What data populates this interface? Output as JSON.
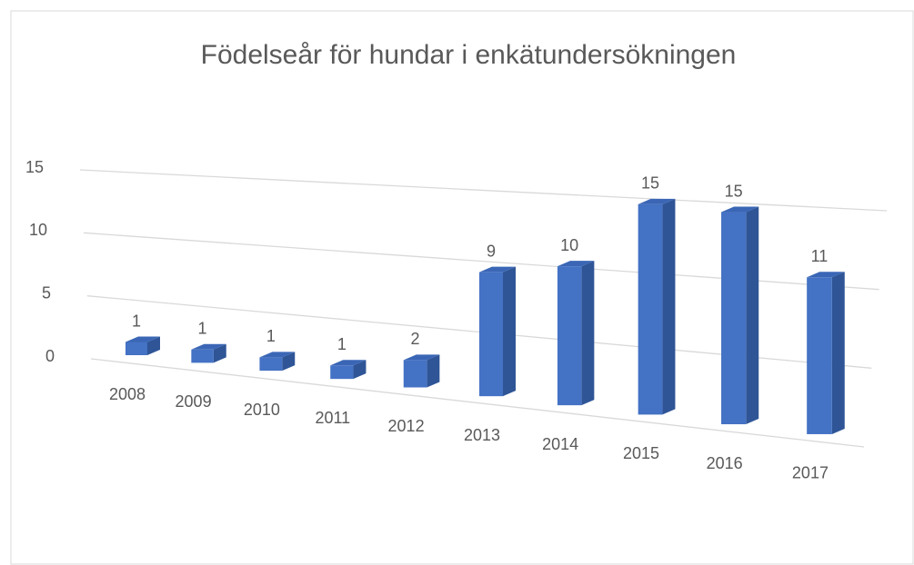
{
  "chart_data": {
    "type": "bar3d",
    "title": "Födelseår för hundar i enkätundersökningen",
    "categories": [
      "2008",
      "2009",
      "2010",
      "2011",
      "2012",
      "2013",
      "2014",
      "2015",
      "2016",
      "2017"
    ],
    "values": [
      1,
      1,
      1,
      1,
      2,
      9,
      10,
      15,
      15,
      11
    ],
    "color": "#4472c4",
    "ylim": [
      0,
      15
    ],
    "yticks": [
      0,
      5,
      10,
      15
    ],
    "grid": true,
    "data_labels": true
  }
}
